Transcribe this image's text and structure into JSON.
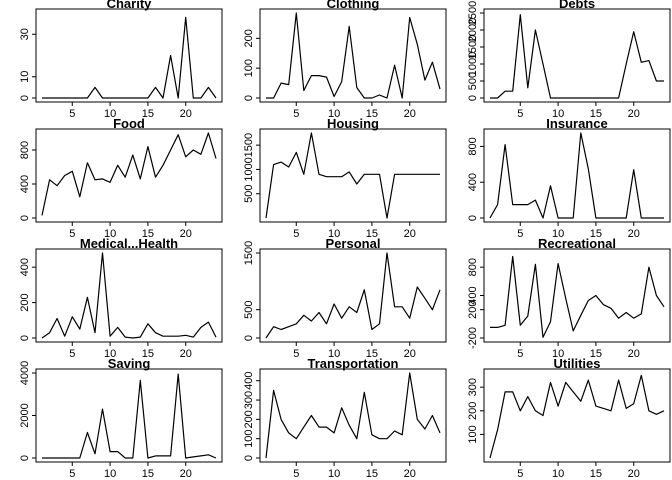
{
  "figure": {
    "layout": "4x3 grid of small-multiple line charts"
  },
  "chart_data": [
    {
      "type": "line",
      "title": "Charity",
      "xlim": [
        1,
        24
      ],
      "ylim": [
        0,
        40
      ],
      "xticks": [
        5,
        10,
        15,
        20
      ],
      "yticks": [
        0,
        10,
        30
      ],
      "x": [
        1,
        2,
        3,
        4,
        5,
        6,
        7,
        8,
        9,
        10,
        11,
        12,
        13,
        14,
        15,
        16,
        17,
        18,
        19,
        20,
        21,
        22,
        23,
        24
      ],
      "values": [
        0,
        0,
        0,
        0,
        0,
        0,
        0,
        5,
        0,
        0,
        0,
        0,
        0,
        0,
        0,
        5,
        0,
        20,
        0,
        38,
        0,
        0,
        5,
        0
      ]
    },
    {
      "type": "line",
      "title": "Clothing",
      "xlim": [
        1,
        24
      ],
      "ylim": [
        0,
        285
      ],
      "xticks": [
        5,
        10,
        15,
        20
      ],
      "yticks": [
        0,
        100,
        200
      ],
      "x": [
        1,
        2,
        3,
        4,
        5,
        6,
        7,
        8,
        9,
        10,
        11,
        12,
        13,
        14,
        15,
        16,
        17,
        18,
        19,
        20,
        21,
        22,
        23,
        24
      ],
      "values": [
        0,
        0,
        50,
        45,
        285,
        25,
        75,
        75,
        70,
        5,
        55,
        240,
        35,
        0,
        0,
        10,
        0,
        110,
        0,
        270,
        180,
        60,
        120,
        30
      ]
    },
    {
      "type": "line",
      "title": "Debts",
      "xlim": [
        1,
        24
      ],
      "ylim": [
        0,
        2500
      ],
      "xticks": [
        5,
        10,
        15,
        20
      ],
      "yticks": [
        0,
        500,
        1000,
        1500,
        2000,
        2500
      ],
      "x": [
        1,
        2,
        3,
        4,
        5,
        6,
        7,
        8,
        9,
        10,
        11,
        12,
        13,
        14,
        15,
        16,
        17,
        18,
        19,
        20,
        21,
        22,
        23,
        24
      ],
      "values": [
        0,
        0,
        200,
        200,
        2450,
        300,
        2000,
        1000,
        0,
        0,
        0,
        0,
        0,
        0,
        0,
        0,
        0,
        0,
        1000,
        1950,
        1050,
        1100,
        500,
        500
      ]
    },
    {
      "type": "line",
      "title": "Food",
      "xlim": [
        1,
        24
      ],
      "ylim": [
        0,
        1000
      ],
      "xticks": [
        5,
        10,
        15,
        20
      ],
      "yticks": [
        0,
        400,
        800
      ],
      "x": [
        1,
        2,
        3,
        4,
        5,
        6,
        7,
        8,
        9,
        10,
        11,
        12,
        13,
        14,
        15,
        16,
        17,
        18,
        19,
        20,
        21,
        22,
        23,
        24
      ],
      "values": [
        30,
        450,
        380,
        500,
        550,
        250,
        650,
        450,
        460,
        420,
        620,
        480,
        740,
        460,
        840,
        480,
        620,
        800,
        980,
        720,
        800,
        750,
        1000,
        700
      ]
    },
    {
      "type": "line",
      "title": "Housing",
      "xlim": [
        1,
        24
      ],
      "ylim": [
        0,
        1750
      ],
      "xticks": [
        5,
        10,
        15,
        20
      ],
      "yticks": [
        500,
        1000,
        1500
      ],
      "x": [
        1,
        2,
        3,
        4,
        5,
        6,
        7,
        8,
        9,
        10,
        11,
        12,
        13,
        14,
        15,
        16,
        17,
        18,
        19,
        20,
        21,
        22,
        23,
        24
      ],
      "values": [
        0,
        1100,
        1150,
        1050,
        1350,
        900,
        1750,
        900,
        850,
        850,
        850,
        950,
        700,
        900,
        900,
        900,
        0,
        900,
        900,
        900,
        900,
        900,
        900,
        900
      ]
    },
    {
      "type": "line",
      "title": "Insurance",
      "xlim": [
        1,
        24
      ],
      "ylim": [
        0,
        950
      ],
      "xticks": [
        5,
        10,
        15,
        20
      ],
      "yticks": [
        0,
        400,
        800
      ],
      "x": [
        1,
        2,
        3,
        4,
        5,
        6,
        7,
        8,
        9,
        10,
        11,
        12,
        13,
        14,
        15,
        16,
        17,
        18,
        19,
        20,
        21,
        22,
        23,
        24
      ],
      "values": [
        0,
        150,
        820,
        150,
        150,
        150,
        200,
        0,
        360,
        0,
        0,
        0,
        950,
        550,
        0,
        0,
        0,
        0,
        0,
        540,
        0,
        0,
        0,
        0
      ]
    },
    {
      "type": "line",
      "title": "Medical...Health",
      "xlim": [
        1,
        24
      ],
      "ylim": [
        0,
        480
      ],
      "xticks": [
        5,
        10,
        15,
        20
      ],
      "yticks": [
        0,
        200,
        400
      ],
      "x": [
        1,
        2,
        3,
        4,
        5,
        6,
        7,
        8,
        9,
        10,
        11,
        12,
        13,
        14,
        15,
        16,
        17,
        18,
        19,
        20,
        21,
        22,
        23,
        24
      ],
      "values": [
        0,
        30,
        110,
        10,
        120,
        50,
        230,
        30,
        480,
        10,
        60,
        5,
        0,
        5,
        80,
        30,
        10,
        10,
        10,
        15,
        5,
        60,
        90,
        5
      ]
    },
    {
      "type": "line",
      "title": "Personal",
      "xlim": [
        1,
        24
      ],
      "ylim": [
        0,
        1500
      ],
      "xticks": [
        5,
        10,
        15,
        20
      ],
      "yticks": [
        0,
        500,
        1500
      ],
      "x": [
        1,
        2,
        3,
        4,
        5,
        6,
        7,
        8,
        9,
        10,
        11,
        12,
        13,
        14,
        15,
        16,
        17,
        18,
        19,
        20,
        21,
        22,
        23,
        24
      ],
      "values": [
        0,
        200,
        150,
        200,
        250,
        400,
        300,
        450,
        250,
        600,
        350,
        550,
        450,
        850,
        150,
        250,
        1500,
        550,
        550,
        350,
        900,
        700,
        500,
        850
      ]
    },
    {
      "type": "line",
      "title": "Recreational",
      "xlim": [
        1,
        24
      ],
      "ylim": [
        -200,
        1000
      ],
      "xticks": [
        5,
        10,
        15,
        20
      ],
      "yticks": [
        -200,
        200,
        400,
        800
      ],
      "x": [
        1,
        2,
        3,
        4,
        5,
        6,
        7,
        8,
        9,
        10,
        11,
        12,
        13,
        14,
        15,
        16,
        17,
        18,
        19,
        20,
        21,
        22,
        23,
        24
      ],
      "values": [
        -50,
        -50,
        -20,
        950,
        -20,
        110,
        840,
        -190,
        30,
        850,
        360,
        -100,
        120,
        330,
        400,
        270,
        220,
        80,
        160,
        80,
        140,
        800,
        400,
        240
      ]
    },
    {
      "type": "line",
      "title": "Saving",
      "xlim": [
        1,
        24
      ],
      "ylim": [
        0,
        4000
      ],
      "xticks": [
        5,
        10,
        15,
        20
      ],
      "yticks": [
        0,
        2000,
        4000
      ],
      "x": [
        1,
        2,
        3,
        4,
        5,
        6,
        7,
        8,
        9,
        10,
        11,
        12,
        13,
        14,
        15,
        16,
        17,
        18,
        19,
        20,
        21,
        22,
        23,
        24
      ],
      "values": [
        0,
        0,
        0,
        0,
        0,
        0,
        1200,
        200,
        2300,
        300,
        300,
        0,
        0,
        3650,
        0,
        100,
        100,
        100,
        3950,
        0,
        50,
        100,
        150,
        0
      ]
    },
    {
      "type": "line",
      "title": "Transportation",
      "xlim": [
        1,
        24
      ],
      "ylim": [
        0,
        440
      ],
      "xticks": [
        5,
        10,
        15,
        20
      ],
      "yticks": [
        0,
        100,
        200,
        300,
        400
      ],
      "x": [
        1,
        2,
        3,
        4,
        5,
        6,
        7,
        8,
        9,
        10,
        11,
        12,
        13,
        14,
        15,
        16,
        17,
        18,
        19,
        20,
        21,
        22,
        23,
        24
      ],
      "values": [
        0,
        350,
        200,
        130,
        100,
        160,
        220,
        160,
        160,
        130,
        260,
        170,
        100,
        340,
        120,
        100,
        100,
        140,
        120,
        440,
        200,
        150,
        220,
        130
      ]
    },
    {
      "type": "line",
      "title": "Utilities",
      "xlim": [
        1,
        24
      ],
      "ylim": [
        0,
        360
      ],
      "xticks": [
        5,
        10,
        15,
        20
      ],
      "yticks": [
        100,
        200,
        300
      ],
      "x": [
        1,
        2,
        3,
        4,
        5,
        6,
        7,
        8,
        9,
        10,
        11,
        12,
        13,
        14,
        15,
        16,
        17,
        18,
        19,
        20,
        21,
        22,
        23,
        24
      ],
      "values": [
        0,
        120,
        280,
        280,
        200,
        260,
        200,
        180,
        320,
        220,
        320,
        280,
        240,
        330,
        220,
        210,
        200,
        330,
        210,
        230,
        350,
        200,
        185,
        200
      ]
    }
  ]
}
